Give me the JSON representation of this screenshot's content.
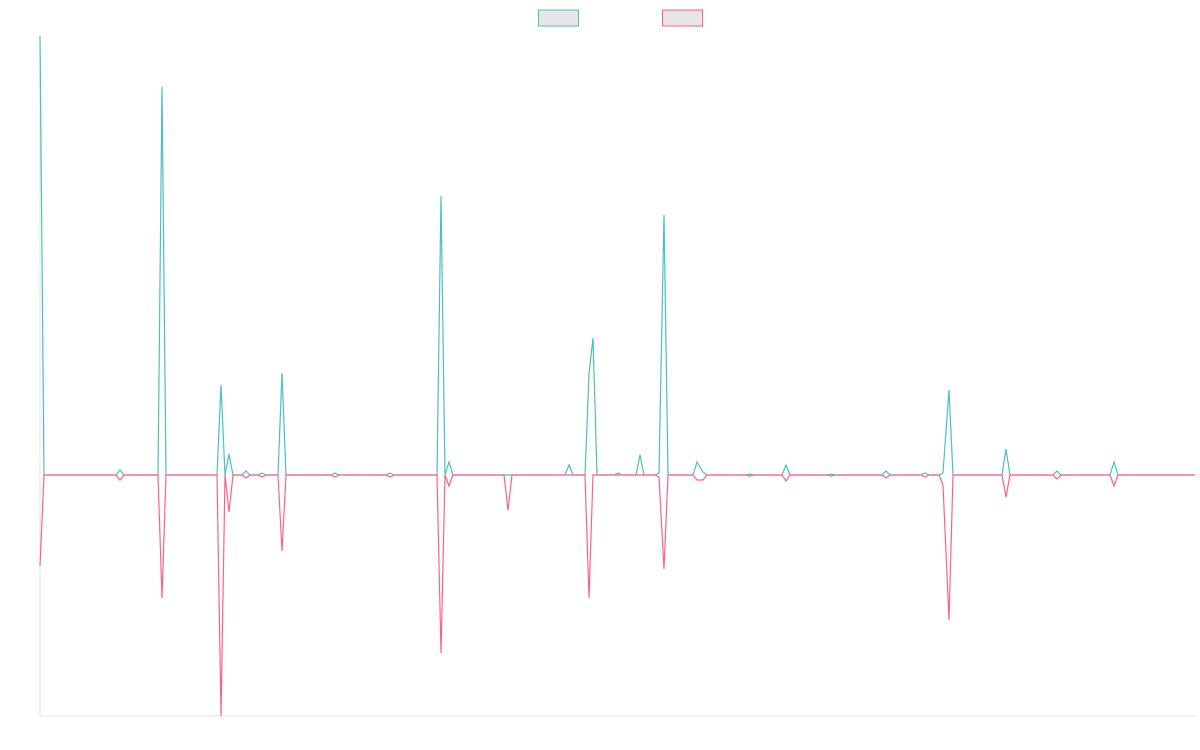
{
  "chart_data": {
    "type": "line",
    "x": [
      0,
      4,
      76,
      80,
      84,
      118,
      122,
      126,
      177,
      181,
      185,
      189,
      193,
      202,
      206,
      210,
      218,
      222,
      226,
      238,
      242,
      246,
      291,
      295,
      299,
      346,
      350,
      354,
      397,
      401,
      405,
      409,
      413,
      464,
      468,
      472,
      525,
      529,
      533,
      545,
      549,
      553,
      557,
      574,
      578,
      582,
      596,
      600,
      604,
      615,
      619,
      624,
      628,
      653,
      657,
      663,
      667,
      706,
      710,
      714,
      742,
      746,
      750,
      787,
      791,
      795,
      842,
      846,
      850,
      881,
      885,
      889,
      899,
      903,
      909,
      913,
      962,
      966,
      970,
      1013,
      1017,
      1021,
      1070,
      1074,
      1078,
      1155
    ],
    "xlim": [
      0,
      1155
    ],
    "ylim": [
      -241,
      439
    ],
    "legend": "top",
    "series": [
      {
        "color": "#4bc0c0",
        "values": [
          439,
          0,
          0,
          5,
          0,
          0,
          388,
          0,
          0,
          90,
          0,
          21,
          0,
          0,
          4,
          0,
          0,
          2,
          0,
          0,
          102,
          0,
          0,
          2,
          0,
          0,
          2,
          0,
          0,
          279,
          0,
          13,
          0,
          0,
          0,
          0,
          0,
          10,
          0,
          0,
          101,
          137,
          0,
          0,
          2,
          0,
          0,
          20,
          0,
          0,
          2,
          260,
          0,
          0,
          13,
          3,
          0,
          0,
          1,
          0,
          0,
          10,
          0,
          0,
          1,
          0,
          0,
          4,
          0,
          0,
          2,
          0,
          0,
          2,
          85,
          0,
          0,
          26,
          0,
          0,
          4,
          0,
          0,
          13,
          0,
          0
        ]
      },
      {
        "color": "#ff6384",
        "values": [
          -91,
          0,
          0,
          -5,
          0,
          0,
          -123,
          0,
          0,
          -241,
          0,
          -37,
          0,
          0,
          -3,
          0,
          0,
          -2,
          0,
          0,
          -76,
          0,
          0,
          -2,
          0,
          0,
          -2,
          0,
          0,
          -178,
          0,
          -11,
          0,
          0,
          -35,
          0,
          0,
          0,
          0,
          0,
          -123,
          0,
          0,
          0,
          0,
          0,
          0,
          0,
          0,
          0,
          -2,
          -94,
          0,
          0,
          -5,
          -5,
          0,
          0,
          -1,
          0,
          0,
          -6,
          0,
          0,
          -1,
          0,
          0,
          -3,
          0,
          0,
          -2,
          0,
          0,
          -10,
          -145,
          0,
          0,
          -22,
          0,
          0,
          -4,
          0,
          0,
          -11,
          0,
          0
        ]
      }
    ]
  }
}
